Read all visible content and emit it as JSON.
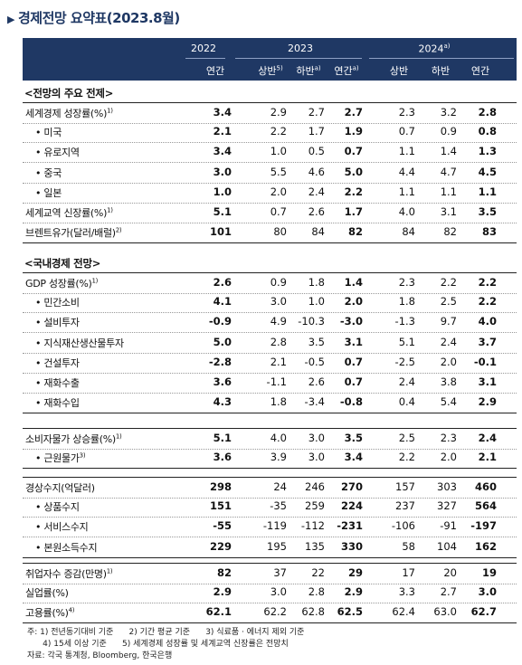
{
  "title": "경제전망 요약표(2023.8월)",
  "header": {
    "y2022": "2022",
    "y2023": "2023",
    "y2024": "2024",
    "y2024_sup": "a)",
    "sub": [
      {
        "t": "연간",
        "s": ""
      },
      {
        "t": "상반",
        "s": "5)"
      },
      {
        "t": "하반",
        "s": "a)"
      },
      {
        "t": "연간",
        "s": "a)"
      },
      {
        "t": "상반",
        "s": ""
      },
      {
        "t": "하반",
        "s": ""
      },
      {
        "t": "연간",
        "s": ""
      }
    ]
  },
  "sections": [
    {
      "title": "<전망의 주요 전제>",
      "rows": [
        {
          "label": "세계경제 성장률(%)",
          "sup": "1)",
          "sub": false,
          "v": [
            "3.4",
            "2.9",
            "2.7",
            "2.7",
            "2.3",
            "3.2",
            "2.8"
          ]
        },
        {
          "label": "• 미국",
          "sup": "",
          "sub": true,
          "v": [
            "2.1",
            "2.2",
            "1.7",
            "1.9",
            "0.7",
            "0.9",
            "0.8"
          ]
        },
        {
          "label": "• 유로지역",
          "sup": "",
          "sub": true,
          "v": [
            "3.4",
            "1.0",
            "0.5",
            "0.7",
            "1.1",
            "1.4",
            "1.3"
          ]
        },
        {
          "label": "• 중국",
          "sup": "",
          "sub": true,
          "v": [
            "3.0",
            "5.5",
            "4.6",
            "5.0",
            "4.4",
            "4.7",
            "4.5"
          ]
        },
        {
          "label": "• 일본",
          "sup": "",
          "sub": true,
          "v": [
            "1.0",
            "2.0",
            "2.4",
            "2.2",
            "1.1",
            "1.1",
            "1.1"
          ]
        },
        {
          "label": "세계교역 신장률(%)",
          "sup": "1)",
          "sub": false,
          "v": [
            "5.1",
            "0.7",
            "2.6",
            "1.7",
            "4.0",
            "3.1",
            "3.5"
          ]
        },
        {
          "label": "브렌트유가(달러/배럴)",
          "sup": "2)",
          "sub": false,
          "v": [
            "101",
            "80",
            "84",
            "82",
            "84",
            "82",
            "83"
          ]
        }
      ]
    },
    {
      "title": "<국내경제 전망>",
      "rows": [
        {
          "label": "GDP 성장률(%)",
          "sup": "1)",
          "sub": false,
          "v": [
            "2.6",
            "0.9",
            "1.8",
            "1.4",
            "2.3",
            "2.2",
            "2.2"
          ]
        },
        {
          "label": "• 민간소비",
          "sup": "",
          "sub": true,
          "v": [
            "4.1",
            "3.0",
            "1.0",
            "2.0",
            "1.8",
            "2.5",
            "2.2"
          ]
        },
        {
          "label": "• 설비투자",
          "sup": "",
          "sub": true,
          "v": [
            "-0.9",
            "4.9",
            "-10.3",
            "-3.0",
            "-1.3",
            "9.7",
            "4.0"
          ]
        },
        {
          "label": "• 지식재산생산물투자",
          "sup": "",
          "sub": true,
          "v": [
            "5.0",
            "2.8",
            "3.5",
            "3.1",
            "5.1",
            "2.4",
            "3.7"
          ]
        },
        {
          "label": "• 건설투자",
          "sup": "",
          "sub": true,
          "v": [
            "-2.8",
            "2.1",
            "-0.5",
            "0.7",
            "-2.5",
            "2.0",
            "-0.1"
          ]
        },
        {
          "label": "• 재화수출",
          "sup": "",
          "sub": true,
          "v": [
            "3.6",
            "-1.1",
            "2.6",
            "0.7",
            "2.4",
            "3.8",
            "3.1"
          ]
        },
        {
          "label": "• 재화수입",
          "sup": "",
          "sub": true,
          "v": [
            "4.3",
            "1.8",
            "-3.4",
            "-0.8",
            "0.4",
            "5.4",
            "2.9"
          ]
        }
      ]
    },
    {
      "title": "",
      "rows": [
        {
          "label": "소비자물가 상승률(%)",
          "sup": "1)",
          "sub": false,
          "v": [
            "5.1",
            "4.0",
            "3.0",
            "3.5",
            "2.5",
            "2.3",
            "2.4"
          ]
        },
        {
          "label": "• 근원물가",
          "sup": "3)",
          "sub": true,
          "v": [
            "3.6",
            "3.9",
            "3.0",
            "3.4",
            "2.2",
            "2.0",
            "2.1"
          ]
        }
      ]
    },
    {
      "title": "",
      "rows": [
        {
          "label": "경상수지(억달러)",
          "sup": "",
          "sub": false,
          "v": [
            "298",
            "24",
            "246",
            "270",
            "157",
            "303",
            "460"
          ]
        },
        {
          "label": "• 상품수지",
          "sup": "",
          "sub": true,
          "v": [
            "151",
            "-35",
            "259",
            "224",
            "237",
            "327",
            "564"
          ]
        },
        {
          "label": "• 서비스수지",
          "sup": "",
          "sub": true,
          "v": [
            "-55",
            "-119",
            "-112",
            "-231",
            "-106",
            "-91",
            "-197"
          ]
        },
        {
          "label": "• 본원소득수지",
          "sup": "",
          "sub": true,
          "v": [
            "229",
            "195",
            "135",
            "330",
            "58",
            "104",
            "162"
          ]
        }
      ]
    },
    {
      "title": "",
      "rows": [
        {
          "label": "취업자수 증감(만명)",
          "sup": "1)",
          "sub": false,
          "v": [
            "82",
            "37",
            "22",
            "29",
            "17",
            "20",
            "19"
          ]
        },
        {
          "label": "실업률(%)",
          "sup": "",
          "sub": false,
          "v": [
            "2.9",
            "3.0",
            "2.8",
            "2.9",
            "3.3",
            "2.7",
            "3.0"
          ]
        },
        {
          "label": "고용률(%)",
          "sup": "4)",
          "sub": false,
          "v": [
            "62.1",
            "62.2",
            "62.8",
            "62.5",
            "62.4",
            "63.0",
            "62.7"
          ]
        }
      ]
    }
  ],
  "notes": [
    "주: 1) 전년동기대비 기준      2) 기간 평균 기준      3) 식료품 · 에너지 제외 기준",
    "      4) 15세 이상 기준      5) 세계경제 성장률 및 세계교역 신장률은 전망치",
    "자료: 각국 통계청, Bloomberg, 한국은행"
  ]
}
